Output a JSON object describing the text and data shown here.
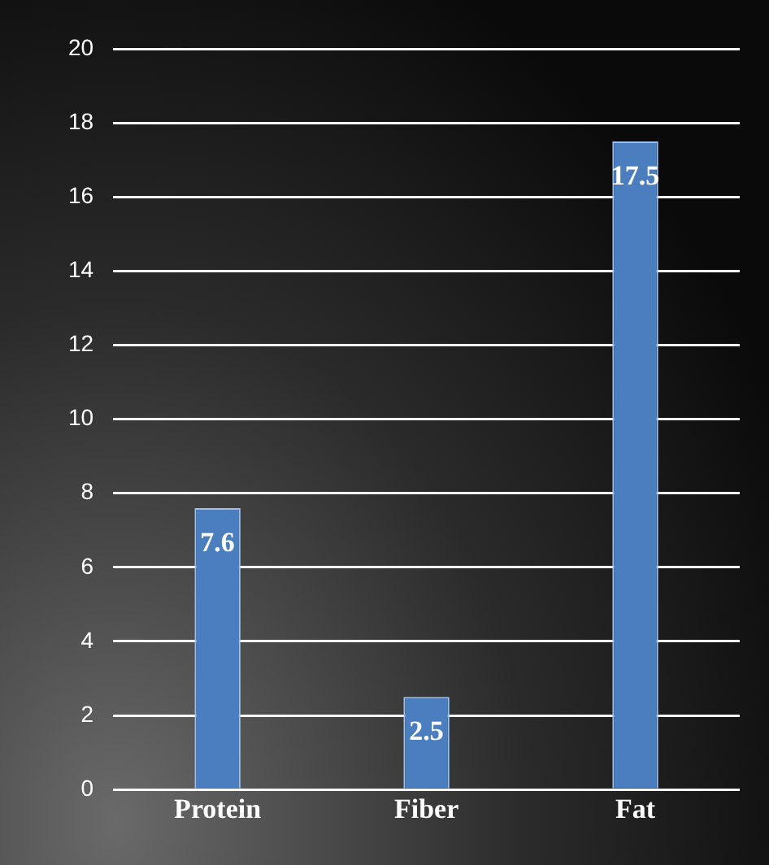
{
  "chart_data": {
    "type": "bar",
    "categories": [
      "Protein",
      "Fiber",
      "Fat"
    ],
    "values": [
      7.6,
      2.5,
      17.5
    ],
    "color": "#4a7ebf",
    "ylim": [
      0,
      20
    ],
    "yticks": [
      0,
      2,
      4,
      6,
      8,
      10,
      12,
      14,
      16,
      18,
      20
    ],
    "grid": "y",
    "data_labels": true
  }
}
